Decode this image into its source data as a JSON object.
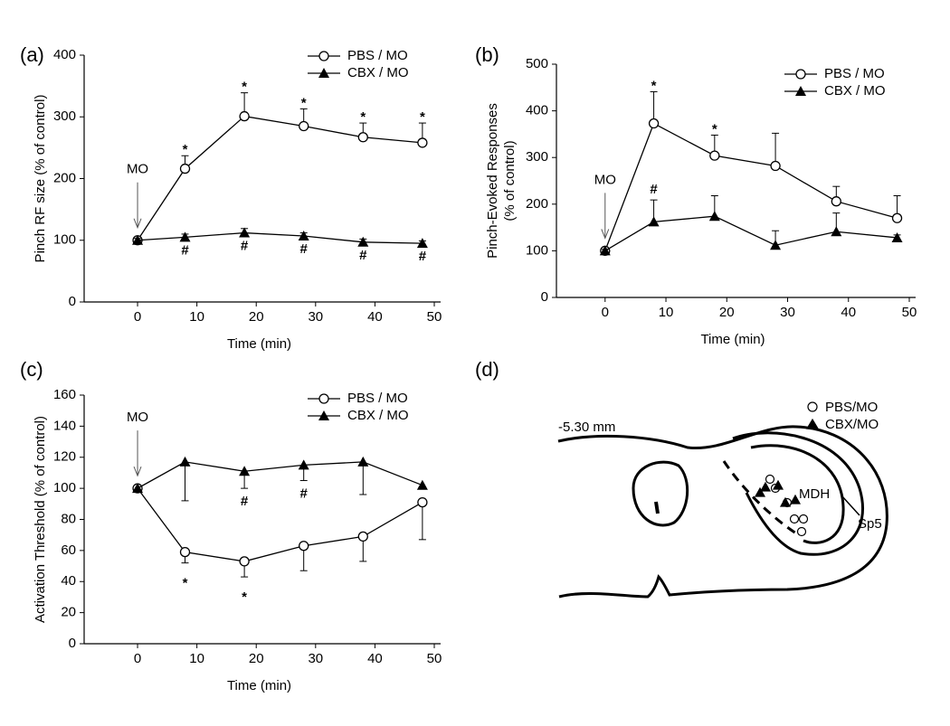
{
  "chart_data": [
    {
      "type": "line",
      "panel_label": "(a)",
      "x_label": "Time (min)",
      "y_label": "Pinch RF size (% of control)",
      "x": [
        0,
        8,
        18,
        28,
        38,
        48
      ],
      "xlim": [
        -9,
        50
      ],
      "xticks": [
        0,
        10,
        20,
        30,
        40,
        50
      ],
      "ylim": [
        0,
        400
      ],
      "yticks": [
        0,
        100,
        200,
        300,
        400
      ],
      "legend": "top-right",
      "event": {
        "x": 0,
        "label": "MO"
      },
      "series": [
        {
          "name": "PBS / MO",
          "color": "#000000",
          "marker": "circle",
          "values": [
            100,
            216,
            301,
            285,
            267,
            258
          ],
          "errors": [
            4,
            21,
            38,
            28,
            23,
            32
          ],
          "error_direction": "up",
          "annotations": [
            null,
            "*",
            "*",
            "*",
            "*",
            "*"
          ],
          "annotation_side": "above"
        },
        {
          "name": "CBX / MO",
          "color": "#000000",
          "marker": "triangle",
          "values": [
            100,
            105,
            112,
            107,
            97,
            95
          ],
          "errors": [
            3,
            5,
            7,
            5,
            5,
            4
          ],
          "error_direction": "up",
          "annotations": [
            null,
            "#",
            "#",
            "#",
            "#",
            "#"
          ],
          "annotation_side": "below"
        }
      ]
    },
    {
      "type": "line",
      "panel_label": "(b)",
      "x_label": "Time (min)",
      "y_label": [
        "Pinch-Evoked Responses",
        "(% of control)"
      ],
      "x": [
        0,
        8,
        18,
        28,
        38,
        48
      ],
      "xlim": [
        -8,
        50
      ],
      "xticks": [
        0,
        10,
        20,
        30,
        40,
        50
      ],
      "ylim": [
        0,
        500
      ],
      "yticks": [
        0,
        100,
        200,
        300,
        400,
        500
      ],
      "legend": "top-right",
      "event": {
        "x": 0,
        "label": "MO"
      },
      "series": [
        {
          "name": "PBS / MO",
          "color": "#000000",
          "marker": "circle",
          "values": [
            100,
            373,
            304,
            282,
            206,
            170
          ],
          "errors": [
            4,
            68,
            44,
            70,
            32,
            48
          ],
          "error_direction": "up",
          "annotations": [
            null,
            "*",
            "*",
            null,
            null,
            null
          ],
          "annotation_side": "above"
        },
        {
          "name": "CBX / MO",
          "color": "#000000",
          "marker": "triangle",
          "values": [
            100,
            162,
            174,
            112,
            141,
            128
          ],
          "errors": [
            3,
            47,
            44,
            31,
            40,
            6
          ],
          "error_direction": "up",
          "annotations": [
            null,
            "#",
            null,
            null,
            null,
            null
          ],
          "annotation_side": "above"
        }
      ]
    },
    {
      "type": "line",
      "panel_label": "(c)",
      "x_label": "Time (min)",
      "y_label": "Activation Threshold (% of control)",
      "x": [
        0,
        8,
        18,
        28,
        38,
        48
      ],
      "xlim": [
        -9,
        50
      ],
      "xticks": [
        0,
        10,
        20,
        30,
        40,
        50
      ],
      "ylim": [
        0,
        160
      ],
      "yticks": [
        0,
        20,
        40,
        60,
        80,
        100,
        120,
        140,
        160
      ],
      "legend": "top-right",
      "event": {
        "x": 0,
        "label": "MO"
      },
      "series": [
        {
          "name": "PBS / MO",
          "color": "#000000",
          "marker": "circle",
          "values": [
            100,
            59,
            53,
            63,
            69,
            91
          ],
          "errors": [
            1,
            7,
            10,
            16,
            16,
            24
          ],
          "error_direction": "down",
          "annotations": [
            null,
            "*",
            "*",
            null,
            null,
            null
          ],
          "annotation_side": "below"
        },
        {
          "name": "CBX / MO",
          "color": "#000000",
          "marker": "triangle",
          "values": [
            100,
            117,
            111,
            115,
            117,
            102
          ],
          "errors": [
            1,
            25,
            11,
            10,
            21,
            2
          ],
          "error_direction": "down",
          "annotations": [
            null,
            null,
            "#",
            "#",
            null,
            null
          ],
          "annotation_side": "below"
        }
      ]
    }
  ],
  "diagram": {
    "panel_label": "(d)",
    "section": "-5.30 mm",
    "legend": [
      "PBS/MO",
      "CBX/MO"
    ],
    "labels": [
      "MDH",
      "Sp5"
    ]
  }
}
